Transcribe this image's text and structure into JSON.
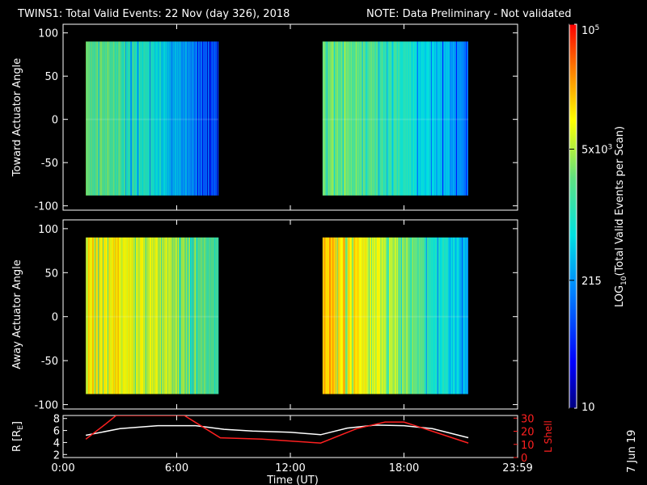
{
  "title": {
    "main": "TWINS1: Total Valid Events: 22 Nov (day 326), 2018",
    "note": "NOTE: Data Preliminary - Not validated",
    "note_color": "#ff2020"
  },
  "date_stamp": "7 Jun 19",
  "chart_data": [
    {
      "type": "heatmap",
      "panel": "toward",
      "ylabel": "Toward Actuator Angle",
      "ylim": [
        -105,
        110
      ],
      "yticks": [
        "100",
        "50",
        "0",
        "-50",
        "-100"
      ],
      "x_range_hours": [
        0,
        24
      ],
      "angle_range": [
        -88,
        90
      ],
      "segments": [
        {
          "start_hour": 1.2,
          "end_hour": 8.2,
          "level_start": 0.6,
          "level_end": 0.2
        },
        {
          "start_hour": 13.7,
          "end_hour": 21.4,
          "level_start": 0.62,
          "level_end": 0.3
        }
      ]
    },
    {
      "type": "heatmap",
      "panel": "away",
      "ylabel": "Away Actuator Angle",
      "ylim": [
        -105,
        110
      ],
      "yticks": [
        "100",
        "50",
        "0",
        "-50",
        "-100"
      ],
      "x_range_hours": [
        0,
        24
      ],
      "angle_range": [
        -88,
        90
      ],
      "segments": [
        {
          "start_hour": 1.2,
          "end_hour": 8.2,
          "level_start": 0.78,
          "level_end": 0.55
        },
        {
          "start_hour": 13.7,
          "end_hour": 21.4,
          "level_start": 0.82,
          "level_end": 0.35
        }
      ]
    },
    {
      "type": "line",
      "panel": "orbit",
      "ylabel_left": "R [R",
      "ylabel_left_sub": "E",
      "ylabel_left_end": "]",
      "ylabel_right": "L Shell",
      "ylim_left": [
        1.5,
        8.5
      ],
      "ylim_right": [
        0,
        32
      ],
      "yticks_left": [
        "8",
        "6",
        "4",
        "2"
      ],
      "yticks_right": [
        "30",
        "20",
        "10",
        "0"
      ],
      "series": [
        {
          "color": "#ffffff",
          "x": [
            1.2,
            3,
            5,
            7,
            8.5,
            10,
            12,
            13.6,
            15,
            16.5,
            18,
            19.5,
            21.4
          ],
          "y": [
            5.2,
            6.3,
            6.8,
            6.8,
            6.2,
            5.9,
            5.7,
            5.3,
            6.4,
            6.9,
            6.8,
            6.3,
            4.8
          ]
        },
        {
          "color": "#ff2020",
          "x": [
            1.2,
            2.2,
            2.8,
            6.4,
            8.3,
            10.5,
            13.6,
            15.5,
            17,
            18,
            19.5,
            21.4
          ],
          "y": [
            14,
            25,
            32,
            32,
            15,
            14,
            11,
            22,
            27,
            27,
            20,
            11
          ]
        }
      ]
    }
  ],
  "xaxis": {
    "label": "Time (UT)",
    "ticks": [
      {
        "hour": 0,
        "label": "0:00"
      },
      {
        "hour": 6,
        "label": "6:00"
      },
      {
        "hour": 12,
        "label": "12:00"
      },
      {
        "hour": 18,
        "label": "18:00"
      },
      {
        "hour": 24,
        "label": "23:59"
      }
    ]
  },
  "colorbar": {
    "label": "LOG",
    "label_sub": "10",
    "label_rest": "(Total Valid Events per Scan)",
    "ticks": [
      {
        "value": 100000,
        "label": "10",
        "sup": "5"
      },
      {
        "value": 5000,
        "label": "5x10",
        "sup": "3"
      },
      {
        "value": 215,
        "label": "215",
        "sup": ""
      },
      {
        "value": 10,
        "label": "10",
        "sup": ""
      }
    ],
    "log_range": [
      1,
      5
    ]
  }
}
